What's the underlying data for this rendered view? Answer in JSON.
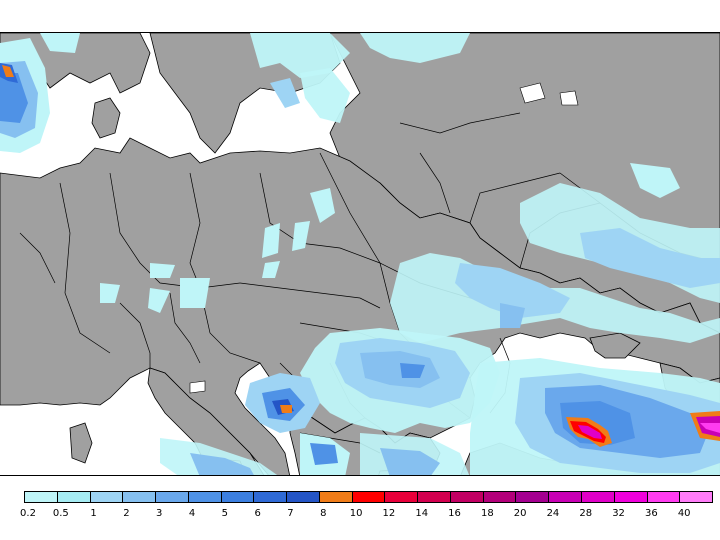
{
  "map": {
    "colors": {
      "land": "#a0a0a0",
      "sea": "#ffffff",
      "border": "#000000"
    }
  },
  "legend": {
    "labels": [
      "0.2",
      "0.5",
      "1",
      "2",
      "3",
      "4",
      "5",
      "6",
      "7",
      "8",
      "10",
      "12",
      "14",
      "16",
      "18",
      "20",
      "24",
      "28",
      "32",
      "36",
      "40"
    ],
    "colors": [
      "#bff5f8",
      "#a6ecf3",
      "#9ed4f4",
      "#86c0f0",
      "#6aa8ec",
      "#4f92e6",
      "#3c7fe0",
      "#2f6ad6",
      "#2455c6",
      "#f07c18",
      "#ff0000",
      "#e8003a",
      "#d3004f",
      "#c20063",
      "#b3007a",
      "#a40090",
      "#c800b4",
      "#e000c8",
      "#f000dc",
      "#ff3cf0",
      "#ff7cf8"
    ]
  }
}
